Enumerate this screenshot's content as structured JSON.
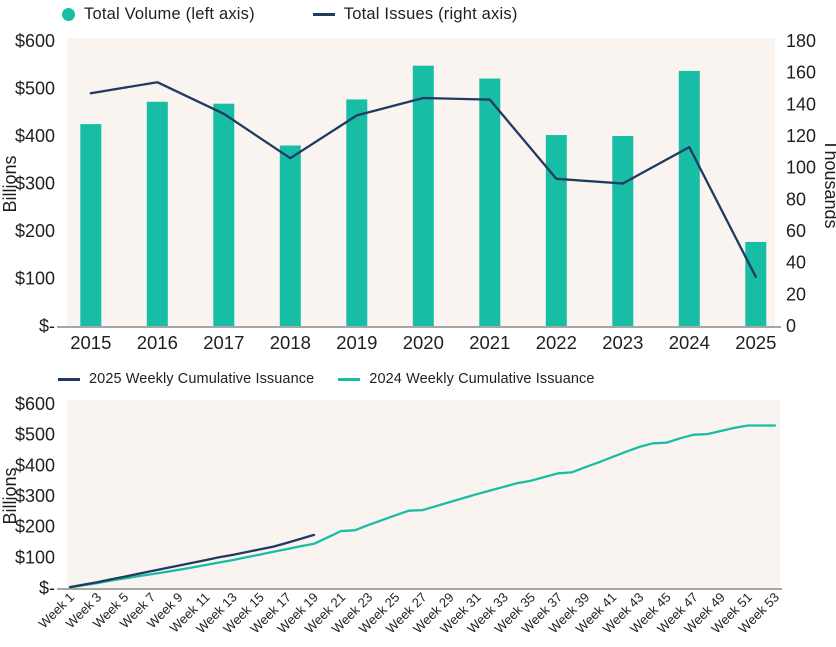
{
  "colors": {
    "teal": "#17BDA4",
    "navy": "#203A60",
    "plot_bg": "#FAF4F1",
    "axis_line": "#A6A6A6",
    "text": "#1F1F1F"
  },
  "chart_data": [
    {
      "type": "bar",
      "subtype": "combo-bar-line",
      "categories": [
        "2015",
        "2016",
        "2017",
        "2018",
        "2019",
        "2020",
        "2021",
        "2022",
        "2023",
        "2024",
        "2025"
      ],
      "series": [
        {
          "name": "Total Volume (left axis)",
          "render": "bar",
          "axis": "left",
          "color": "teal",
          "values": [
            425,
            472,
            468,
            380,
            477,
            548,
            521,
            402,
            400,
            537,
            177
          ]
        },
        {
          "name": "Total Issues (right axis)",
          "render": "line",
          "axis": "right",
          "color": "navy",
          "values": [
            147,
            154,
            134,
            106,
            133,
            144,
            143,
            93,
            90,
            113,
            31
          ]
        }
      ],
      "left_axis": {
        "label": "Billions",
        "min": 0,
        "max": 600,
        "step": 100,
        "tick_labels": [
          "$-",
          "$100",
          "$200",
          "$300",
          "$400",
          "$500",
          "$600"
        ]
      },
      "right_axis": {
        "label": "Thousands",
        "min": 0,
        "max": 180,
        "step": 20,
        "tick_labels": [
          "0",
          "20",
          "40",
          "60",
          "80",
          "100",
          "120",
          "140",
          "160",
          "180"
        ]
      },
      "legend_position": "top-left",
      "grid": false
    },
    {
      "type": "line",
      "x_axis": {
        "min": 1,
        "max": 53,
        "tick_labels": [
          "Week 1",
          "Week 3",
          "Week 5",
          "Week 7",
          "Week 9",
          "Week 11",
          "Week 13",
          "Week 15",
          "Week 17",
          "Week 19",
          "Week 21",
          "Week 23",
          "Week 25",
          "Week 27",
          "Week 29",
          "Week 31",
          "Week 33",
          "Week 35",
          "Week 37",
          "Week 39",
          "Week 41",
          "Week 43",
          "Week 45",
          "Week 47",
          "Week 49",
          "Week 51",
          "Week 53"
        ]
      },
      "left_axis": {
        "label": "Billions",
        "min": 0,
        "max": 600,
        "step": 100,
        "tick_labels": [
          "$-",
          "$100",
          "$200",
          "$300",
          "$400",
          "$500",
          "$600"
        ]
      },
      "series": [
        {
          "name": "2025 Weekly Cumulative Issuance",
          "color": "navy",
          "start_week": 1,
          "values": [
            3,
            11,
            19,
            28,
            37,
            46,
            55,
            64,
            73,
            82,
            91,
            100,
            108,
            117,
            126,
            135,
            147,
            160,
            173
          ]
        },
        {
          "name": "2024 Weekly Cumulative Issuance",
          "color": "teal",
          "start_week": 1,
          "values": [
            2,
            9,
            16,
            24,
            31,
            38,
            45,
            52,
            59,
            67,
            75,
            83,
            91,
            100,
            109,
            118,
            127,
            136,
            144,
            165,
            186,
            188,
            205,
            221,
            237,
            252,
            254,
            267,
            280,
            293,
            306,
            318,
            330,
            342,
            350,
            362,
            374,
            377,
            394,
            410,
            427,
            444,
            460,
            472,
            474,
            488,
            500,
            502,
            512,
            522,
            530,
            530,
            530
          ]
        }
      ],
      "legend_position": "top-left",
      "grid": false
    }
  ]
}
